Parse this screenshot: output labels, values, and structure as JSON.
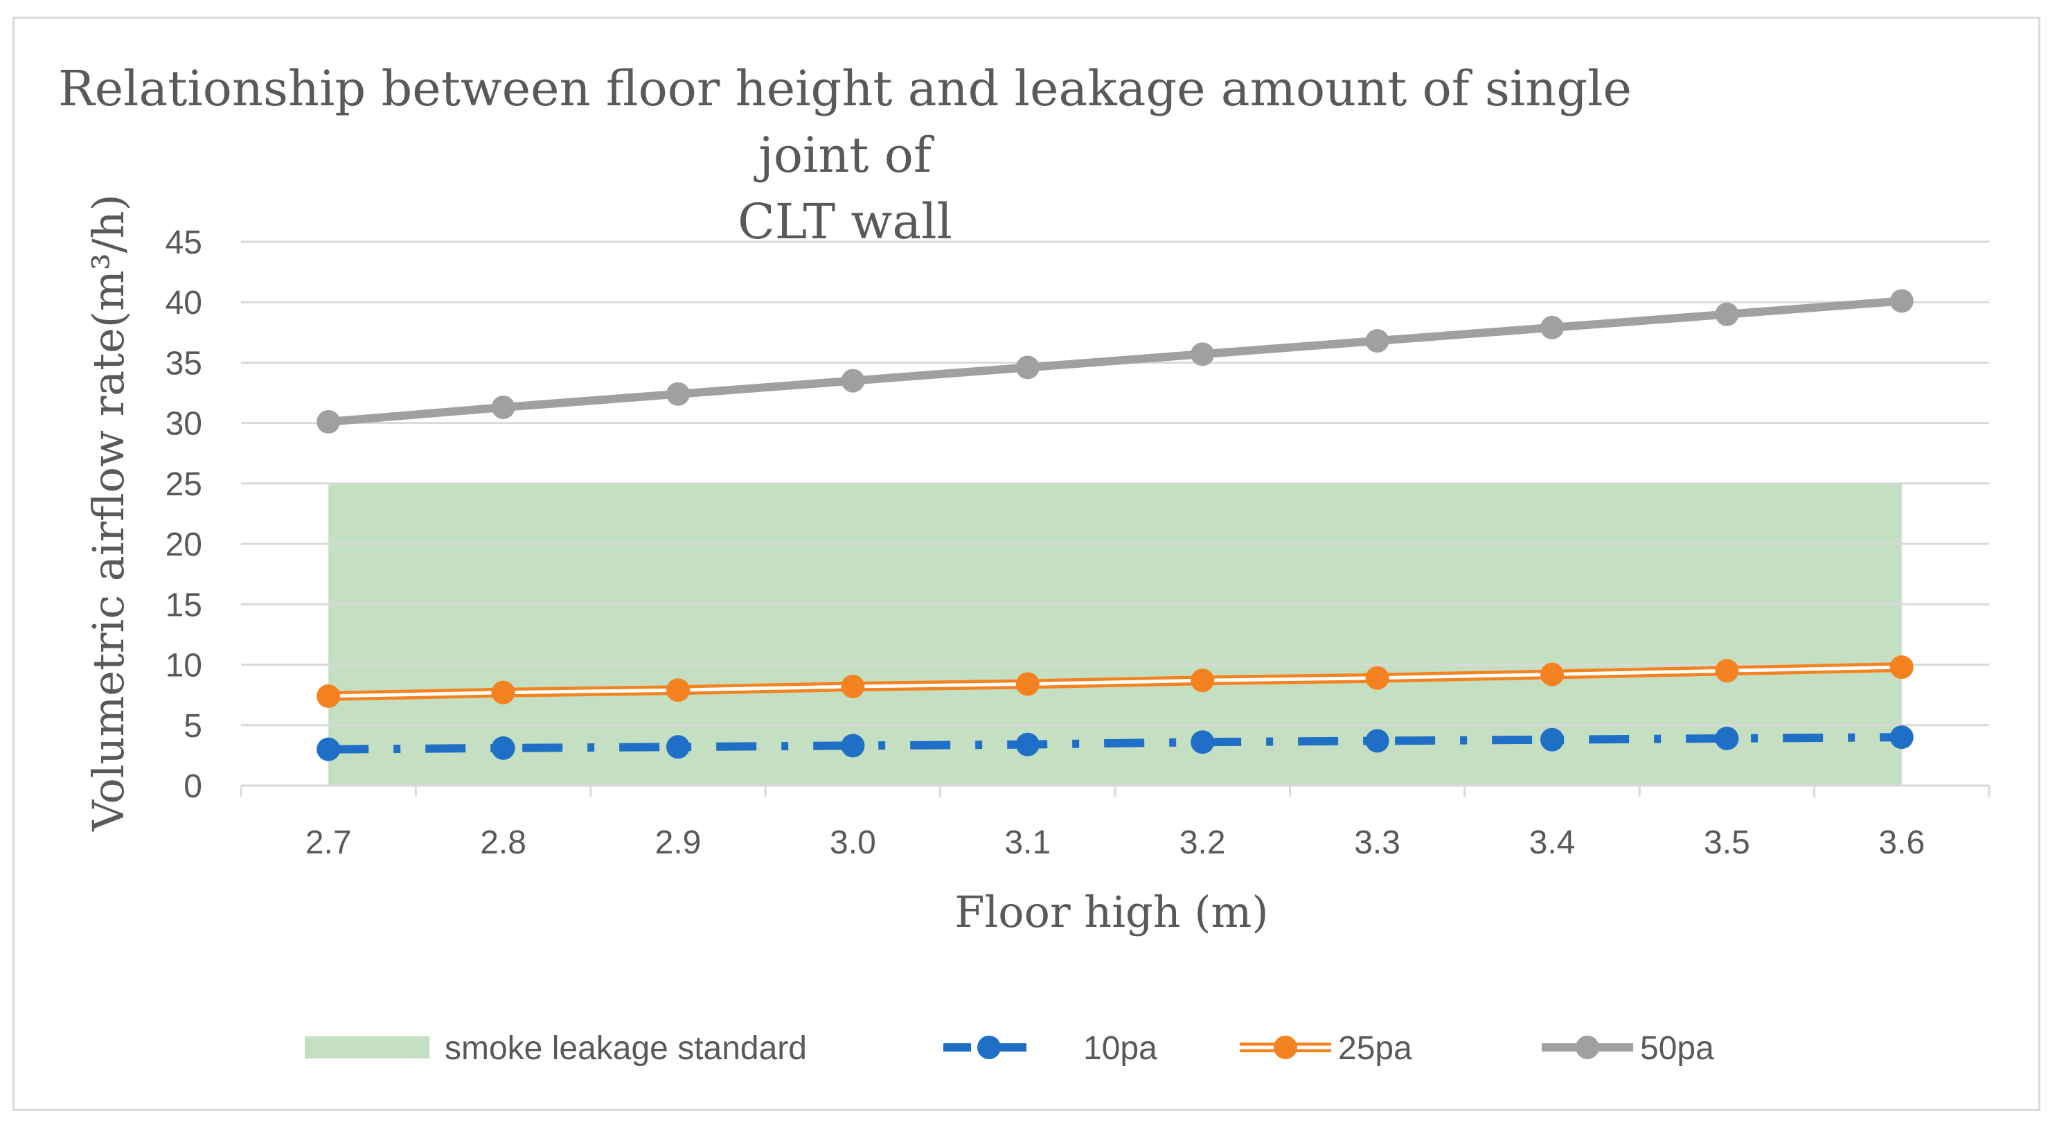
{
  "chart_data": {
    "type": "line",
    "title_line1": "Relationship between floor height and leakage amount of single joint of",
    "title_line2": "CLT wall",
    "xlabel": "Floor high (m)",
    "ylabel": "Volumetric airflow rate(m³/h)",
    "categories": [
      "2.7",
      "2.8",
      "2.9",
      "3.0",
      "3.1",
      "3.2",
      "3.3",
      "3.4",
      "3.5",
      "3.6"
    ],
    "ylim": [
      0,
      45
    ],
    "yticks": [
      "0",
      "5",
      "10",
      "15",
      "20",
      "25",
      "30",
      "35",
      "40",
      "45"
    ],
    "grid": true,
    "legend_position": "bottom",
    "band": {
      "name": "smoke leakage standard",
      "value": 25,
      "color": "#c5dfc2"
    },
    "series": [
      {
        "name": "10pa",
        "color": "#1f6fc6",
        "style": "dash-dot",
        "values": [
          3.0,
          3.1,
          3.2,
          3.3,
          3.4,
          3.6,
          3.7,
          3.8,
          3.9,
          4.0
        ]
      },
      {
        "name": "25pa",
        "color": "#f58220",
        "style": "double",
        "values": [
          7.4,
          7.7,
          7.9,
          8.2,
          8.4,
          8.7,
          8.9,
          9.2,
          9.5,
          9.8
        ]
      },
      {
        "name": "50pa",
        "color": "#a0a0a0",
        "style": "solid",
        "values": [
          30.1,
          31.3,
          32.4,
          33.5,
          34.6,
          35.7,
          36.8,
          37.9,
          39.0,
          40.1
        ]
      }
    ]
  }
}
